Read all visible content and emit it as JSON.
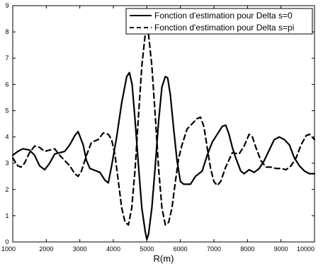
{
  "chart_data": {
    "type": "line",
    "title": "",
    "xlabel": "R(m)",
    "ylabel": "",
    "xlim": [
      1000,
      10000
    ],
    "ylim": [
      0,
      9
    ],
    "xticks": [
      1000,
      2000,
      3000,
      4000,
      5000,
      6000,
      7000,
      8000,
      9000,
      10000
    ],
    "yticks": [
      0,
      1,
      2,
      3,
      4,
      5,
      6,
      7,
      8,
      9
    ],
    "grid": false,
    "legend_position": "top-right",
    "series": [
      {
        "name": "Fonction d'estimation pour Delta s=0",
        "style": "solid",
        "color": "#000000",
        "points": [
          [
            1000,
            3.3
          ],
          [
            1150,
            3.45
          ],
          [
            1300,
            3.55
          ],
          [
            1500,
            3.5
          ],
          [
            1650,
            3.3
          ],
          [
            1800,
            2.9
          ],
          [
            1950,
            2.75
          ],
          [
            2100,
            3.0
          ],
          [
            2250,
            3.35
          ],
          [
            2400,
            3.4
          ],
          [
            2550,
            3.45
          ],
          [
            2700,
            3.7
          ],
          [
            2850,
            4.05
          ],
          [
            2950,
            4.2
          ],
          [
            3100,
            3.7
          ],
          [
            3200,
            3.1
          ],
          [
            3300,
            2.8
          ],
          [
            3400,
            2.75
          ],
          [
            3500,
            2.7
          ],
          [
            3600,
            2.65
          ],
          [
            3750,
            2.35
          ],
          [
            3850,
            2.25
          ],
          [
            3950,
            2.9
          ],
          [
            4100,
            4.0
          ],
          [
            4250,
            5.3
          ],
          [
            4400,
            6.3
          ],
          [
            4480,
            6.45
          ],
          [
            4560,
            6.0
          ],
          [
            4650,
            4.6
          ],
          [
            4750,
            2.9
          ],
          [
            4850,
            1.3
          ],
          [
            4950,
            0.4
          ],
          [
            5000,
            0.1
          ],
          [
            5050,
            0.3
          ],
          [
            5150,
            1.3
          ],
          [
            5250,
            2.9
          ],
          [
            5350,
            4.6
          ],
          [
            5450,
            5.9
          ],
          [
            5550,
            6.3
          ],
          [
            5620,
            6.25
          ],
          [
            5700,
            5.6
          ],
          [
            5800,
            4.3
          ],
          [
            5900,
            3.1
          ],
          [
            6000,
            2.3
          ],
          [
            6100,
            2.2
          ],
          [
            6300,
            2.2
          ],
          [
            6450,
            2.5
          ],
          [
            6650,
            2.7
          ],
          [
            6800,
            3.3
          ],
          [
            6950,
            3.8
          ],
          [
            7100,
            4.1
          ],
          [
            7250,
            4.4
          ],
          [
            7350,
            4.45
          ],
          [
            7450,
            4.1
          ],
          [
            7550,
            3.6
          ],
          [
            7650,
            3.2
          ],
          [
            7800,
            2.7
          ],
          [
            7900,
            2.6
          ],
          [
            8050,
            2.75
          ],
          [
            8200,
            2.65
          ],
          [
            8350,
            2.8
          ],
          [
            8500,
            3.1
          ],
          [
            8650,
            3.5
          ],
          [
            8800,
            3.9
          ],
          [
            8950,
            4.0
          ],
          [
            9100,
            3.9
          ],
          [
            9250,
            3.7
          ],
          [
            9400,
            3.2
          ],
          [
            9550,
            2.9
          ],
          [
            9700,
            2.7
          ],
          [
            9850,
            2.6
          ],
          [
            10000,
            2.6
          ]
        ]
      },
      {
        "name": "Fonction d'estimation pour Delta s=pi",
        "style": "dashed",
        "color": "#000000",
        "points": [
          [
            1000,
            3.2
          ],
          [
            1150,
            2.9
          ],
          [
            1250,
            2.85
          ],
          [
            1350,
            3.0
          ],
          [
            1500,
            3.4
          ],
          [
            1650,
            3.65
          ],
          [
            1800,
            3.6
          ],
          [
            1950,
            3.45
          ],
          [
            2100,
            3.5
          ],
          [
            2250,
            3.55
          ],
          [
            2400,
            3.3
          ],
          [
            2550,
            3.1
          ],
          [
            2700,
            2.9
          ],
          [
            2850,
            2.6
          ],
          [
            2950,
            2.5
          ],
          [
            3050,
            2.7
          ],
          [
            3200,
            3.3
          ],
          [
            3350,
            3.8
          ],
          [
            3550,
            3.9
          ],
          [
            3700,
            4.15
          ],
          [
            3850,
            4.1
          ],
          [
            3950,
            3.9
          ],
          [
            4050,
            3.3
          ],
          [
            4150,
            2.3
          ],
          [
            4250,
            1.3
          ],
          [
            4350,
            0.75
          ],
          [
            4450,
            0.65
          ],
          [
            4550,
            1.3
          ],
          [
            4650,
            2.8
          ],
          [
            4750,
            4.8
          ],
          [
            4850,
            6.7
          ],
          [
            4950,
            7.9
          ],
          [
            5000,
            8.1
          ],
          [
            5050,
            7.9
          ],
          [
            5150,
            6.7
          ],
          [
            5250,
            4.8
          ],
          [
            5350,
            2.8
          ],
          [
            5450,
            1.3
          ],
          [
            5550,
            0.65
          ],
          [
            5650,
            0.75
          ],
          [
            5750,
            1.3
          ],
          [
            5850,
            2.3
          ],
          [
            5950,
            3.2
          ],
          [
            6050,
            3.7
          ],
          [
            6200,
            4.3
          ],
          [
            6350,
            4.5
          ],
          [
            6500,
            4.7
          ],
          [
            6600,
            4.75
          ],
          [
            6700,
            4.4
          ],
          [
            6800,
            3.6
          ],
          [
            6900,
            2.8
          ],
          [
            7000,
            2.3
          ],
          [
            7100,
            2.15
          ],
          [
            7200,
            2.3
          ],
          [
            7350,
            2.85
          ],
          [
            7550,
            3.4
          ],
          [
            7750,
            3.35
          ],
          [
            7900,
            3.65
          ],
          [
            8050,
            4.1
          ],
          [
            8150,
            4.0
          ],
          [
            8250,
            3.6
          ],
          [
            8400,
            3.1
          ],
          [
            8550,
            2.85
          ],
          [
            8700,
            2.85
          ],
          [
            8850,
            2.8
          ],
          [
            9000,
            2.8
          ],
          [
            9150,
            2.75
          ],
          [
            9300,
            2.9
          ],
          [
            9450,
            3.2
          ],
          [
            9600,
            3.7
          ],
          [
            9750,
            4.05
          ],
          [
            9850,
            4.1
          ],
          [
            10000,
            3.9
          ]
        ]
      }
    ]
  }
}
